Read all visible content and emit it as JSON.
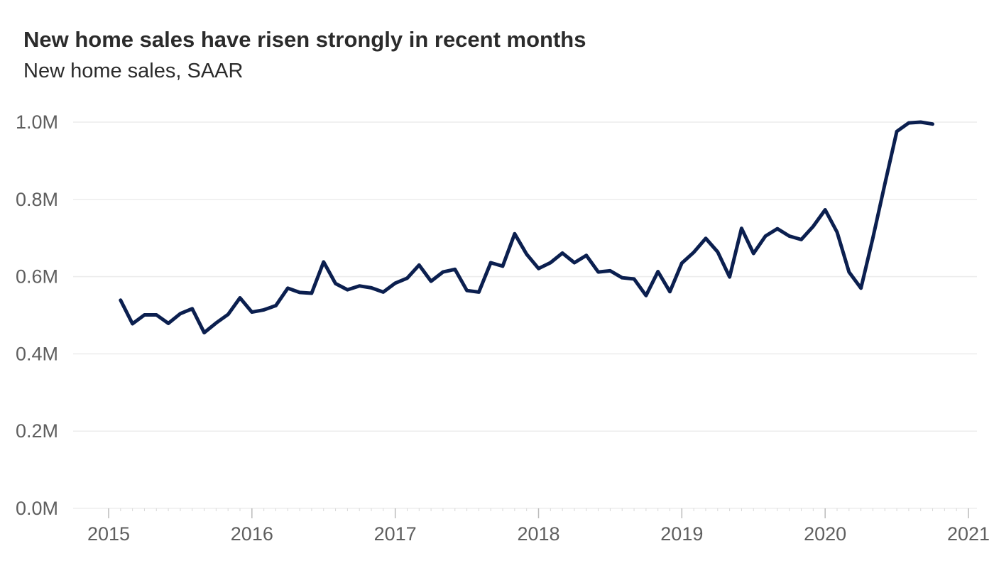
{
  "chart_data": {
    "type": "line",
    "title": "New home sales have risen strongly in recent months",
    "subtitle": "New home sales, SAAR",
    "xlabel": "",
    "ylabel": "",
    "x_axis": "date",
    "xlim": [
      "2015-01",
      "2021-01"
    ],
    "ylim": [
      0,
      1000000
    ],
    "y_ticks": [
      0,
      200000,
      400000,
      600000,
      800000,
      1000000
    ],
    "y_tick_labels": [
      "0.0M",
      "0.2M",
      "0.4M",
      "0.6M",
      "0.8M",
      "1.0M"
    ],
    "x_tick_labels": [
      "2015",
      "2016",
      "2017",
      "2018",
      "2019",
      "2020",
      "2021"
    ],
    "grid": "horizontal",
    "legend": "none",
    "line_color": "#0b1f4f",
    "series": [
      {
        "x": [
          "2015-02",
          "2015-03",
          "2015-04",
          "2015-05",
          "2015-06",
          "2015-07",
          "2015-08",
          "2015-09",
          "2015-10",
          "2015-11",
          "2015-12",
          "2016-01",
          "2016-02",
          "2016-03",
          "2016-04",
          "2016-05",
          "2016-06",
          "2016-07",
          "2016-08",
          "2016-09",
          "2016-10",
          "2016-11",
          "2016-12",
          "2017-01",
          "2017-02",
          "2017-03",
          "2017-04",
          "2017-05",
          "2017-06",
          "2017-07",
          "2017-08",
          "2017-09",
          "2017-10",
          "2017-11",
          "2017-12",
          "2018-01",
          "2018-02",
          "2018-03",
          "2018-04",
          "2018-05",
          "2018-06",
          "2018-07",
          "2018-08",
          "2018-09",
          "2018-10",
          "2018-11",
          "2018-12",
          "2019-01",
          "2019-02",
          "2019-03",
          "2019-04",
          "2019-05",
          "2019-06",
          "2019-07",
          "2019-08",
          "2019-09",
          "2019-10",
          "2019-11",
          "2019-12",
          "2020-01",
          "2020-02",
          "2020-03",
          "2020-04",
          "2020-05",
          "2020-06",
          "2020-07",
          "2020-08",
          "2020-09",
          "2020-10",
          "2020-11"
        ],
        "values": [
          539000,
          478000,
          501000,
          501000,
          479000,
          504000,
          517000,
          455000,
          480000,
          502000,
          545000,
          508000,
          514000,
          525000,
          570000,
          559000,
          557000,
          638000,
          582000,
          566000,
          576000,
          571000,
          560000,
          583000,
          596000,
          630000,
          588000,
          612000,
          619000,
          564000,
          560000,
          636000,
          627000,
          711000,
          658000,
          621000,
          636000,
          661000,
          636000,
          655000,
          612000,
          615000,
          597000,
          594000,
          551000,
          613000,
          561000,
          635000,
          663000,
          699000,
          664000,
          599000,
          725000,
          660000,
          705000,
          724000,
          705000,
          696000,
          730000,
          773000,
          715000,
          612000,
          570000,
          700000,
          840000,
          976000,
          998000,
          1000000,
          995000,
          null
        ]
      }
    ]
  }
}
